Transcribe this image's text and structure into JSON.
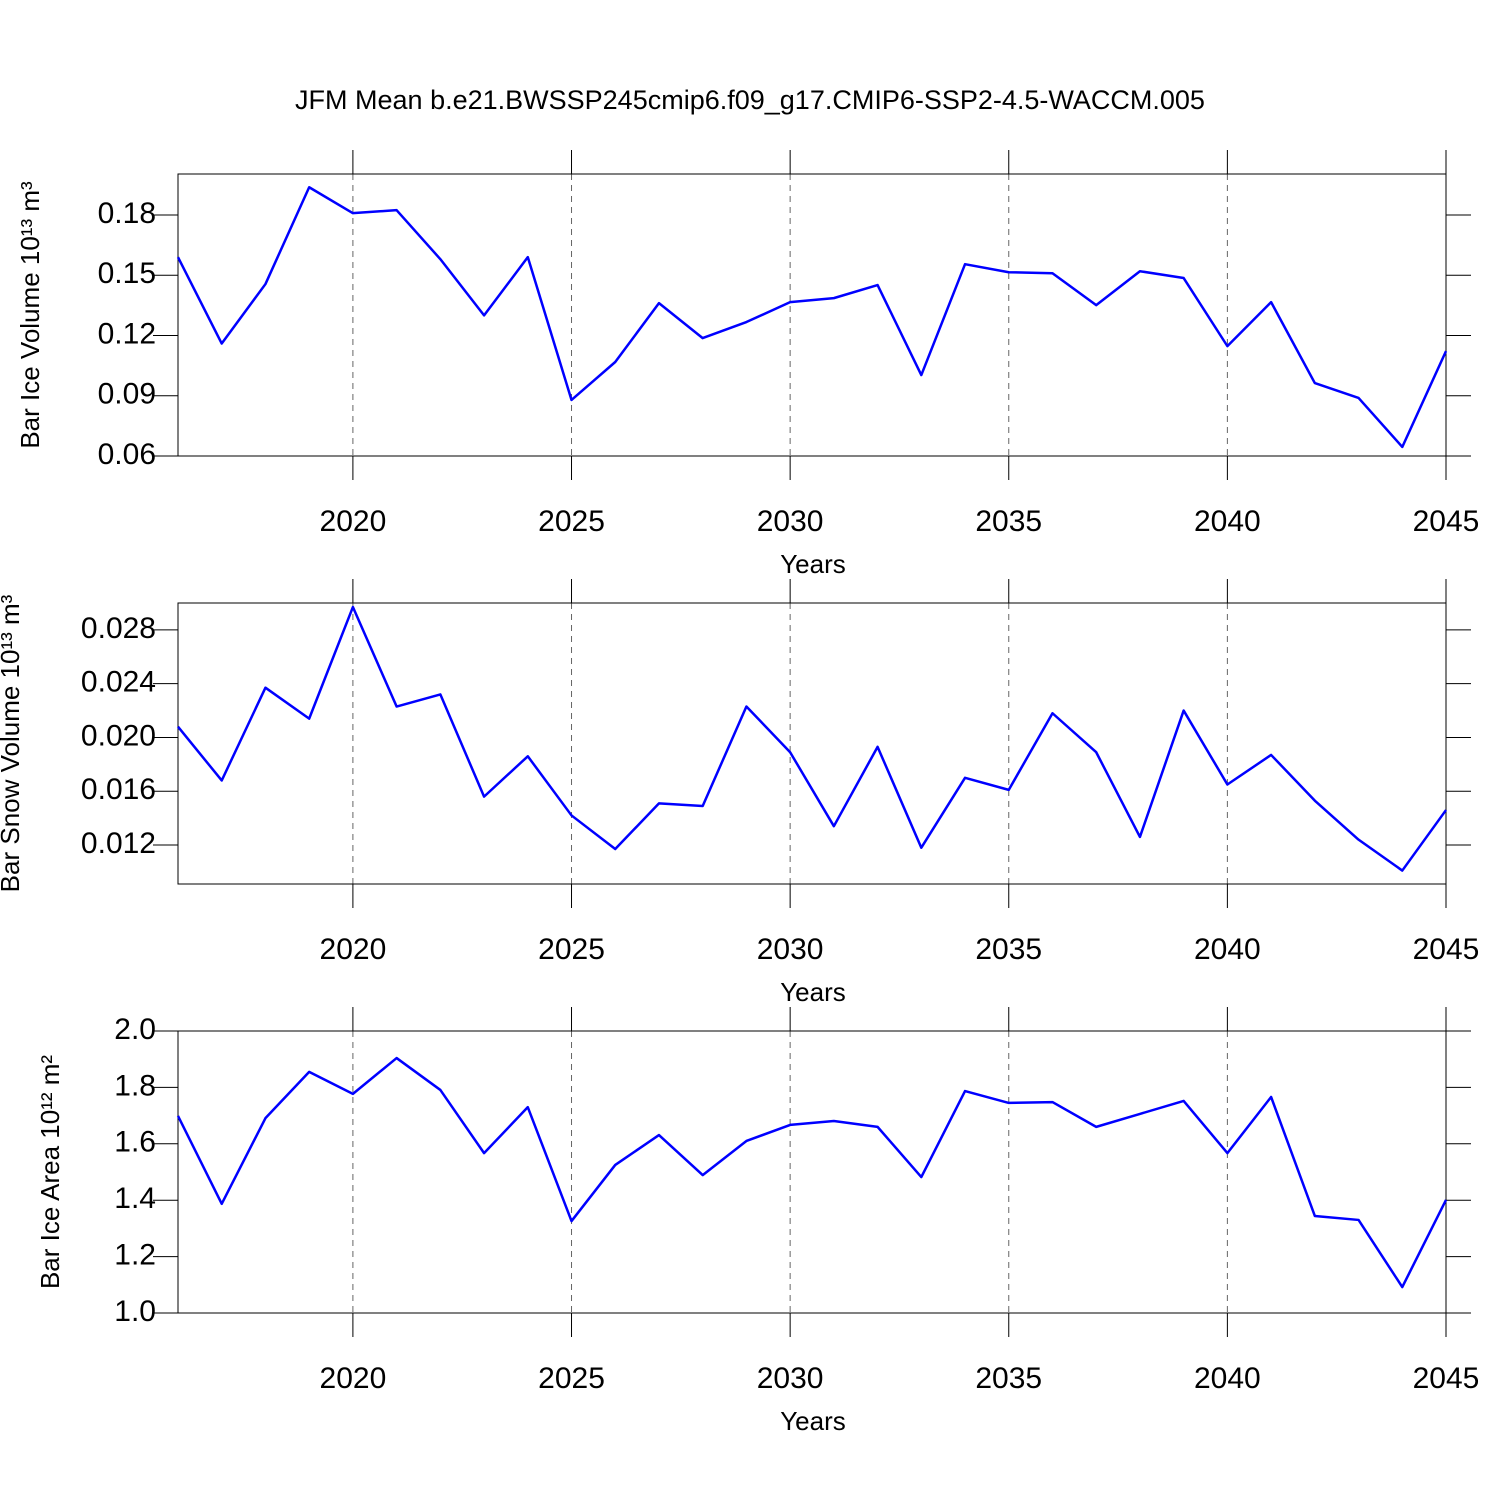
{
  "chart_data": [
    {
      "type": "line",
      "title": "JFM Mean b.e21.BWSSP245cmip6.f09_g17.CMIP6-SSP2-4.5-WACCM.005",
      "ylabel": "Bar Ice Volume 10¹³ m³",
      "xlabel": "Years",
      "x": [
        2016,
        2017,
        2018,
        2019,
        2020,
        2021,
        2022,
        2023,
        2024,
        2025,
        2026,
        2027,
        2028,
        2029,
        2030,
        2031,
        2032,
        2033,
        2034,
        2035,
        2036,
        2037,
        2038,
        2039,
        2040,
        2041,
        2042,
        2043,
        2044,
        2045
      ],
      "series": [
        {
          "color": "#0000ff",
          "values": [
            0.159,
            0.116,
            0.1456,
            0.1938,
            0.1809,
            0.1824,
            0.158,
            0.13,
            0.159,
            0.0879,
            0.1068,
            0.1361,
            0.1187,
            0.1267,
            0.1366,
            0.1386,
            0.1451,
            0.1003,
            0.1555,
            0.1515,
            0.151,
            0.1351,
            0.152,
            0.1486,
            0.1147,
            0.1366,
            0.0963,
            0.0889,
            0.0645,
            0.1122
          ]
        }
      ],
      "xlim": [
        2016,
        2045
      ],
      "xticks": [
        2020,
        2025,
        2030,
        2035,
        2040,
        2045
      ],
      "ylim": [
        0.06,
        0.2004
      ],
      "yticks": [
        0.06,
        0.09,
        0.12,
        0.15,
        0.18
      ],
      "grid": true
    },
    {
      "type": "line",
      "ylabel": "Bar Snow Volume 10¹³ m³",
      "xlabel": "Years",
      "x": [
        2016,
        2017,
        2018,
        2019,
        2020,
        2021,
        2022,
        2023,
        2024,
        2025,
        2026,
        2027,
        2028,
        2029,
        2030,
        2031,
        2032,
        2033,
        2034,
        2035,
        2036,
        2037,
        2038,
        2039,
        2040,
        2041,
        2042,
        2043,
        2044,
        2045
      ],
      "series": [
        {
          "color": "#0000ff",
          "values": [
            0.0208,
            0.0168,
            0.0237,
            0.0214,
            0.0297,
            0.0223,
            0.0232,
            0.0156,
            0.0186,
            0.0142,
            0.0117,
            0.0151,
            0.0149,
            0.0223,
            0.0189,
            0.0134,
            0.0193,
            0.0118,
            0.017,
            0.0161,
            0.0218,
            0.0189,
            0.0126,
            0.022,
            0.0165,
            0.0187,
            0.0153,
            0.0124,
            0.0101,
            0.0146
          ]
        }
      ],
      "xlim": [
        2016,
        2045
      ],
      "xticks": [
        2020,
        2025,
        2030,
        2035,
        2040,
        2045
      ],
      "ylim": [
        0.0091,
        0.03
      ],
      "yticks": [
        0.012,
        0.016,
        {
          "value": 0.02,
          "label": "0.020"
        },
        0.024,
        0.028
      ],
      "grid": true
    },
    {
      "type": "line",
      "ylabel": "Bar Ice Area 10¹² m²",
      "xlabel": "Years",
      "x": [
        2016,
        2017,
        2018,
        2019,
        2020,
        2021,
        2022,
        2023,
        2024,
        2025,
        2026,
        2027,
        2028,
        2029,
        2030,
        2031,
        2032,
        2033,
        2034,
        2035,
        2036,
        2037,
        2038,
        2039,
        2040,
        2041,
        2042,
        2043,
        2044,
        2045
      ],
      "series": [
        {
          "color": "#0000ff",
          "values": [
            1.699,
            1.387,
            1.691,
            1.855,
            1.777,
            1.904,
            1.791,
            1.567,
            1.73,
            1.326,
            1.525,
            1.631,
            1.489,
            1.61,
            1.667,
            1.681,
            1.66,
            1.482,
            1.787,
            1.745,
            1.748,
            1.66,
            1.706,
            1.752,
            1.567,
            1.766,
            1.344,
            1.33,
            1.092,
            1.401
          ]
        }
      ],
      "xlim": [
        2016,
        2045
      ],
      "xticks": [
        2020,
        2025,
        2030,
        2035,
        2040,
        2045
      ],
      "ylim": [
        1.0,
        2.0
      ],
      "yticks": [
        {
          "value": 1.0,
          "label": "1.0"
        },
        1.2,
        1.4,
        1.6,
        1.8,
        {
          "value": 2.0,
          "label": "2.0"
        }
      ],
      "grid": true
    }
  ]
}
